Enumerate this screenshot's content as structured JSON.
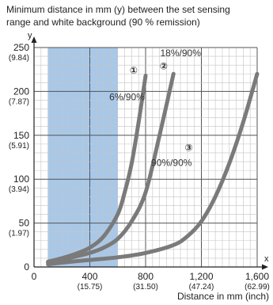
{
  "chart_data": {
    "type": "line",
    "title_lines": [
      "Minimum distance in mm (y) between the set sensing",
      "range and white background (90 % remission)"
    ],
    "xlabel": "Distance in mm (inch)",
    "x_axis_letter": "x",
    "y_axis_letter": "y",
    "xlim": [
      0,
      1600
    ],
    "ylim": [
      0,
      250
    ],
    "grid": true,
    "x_ticks": [
      {
        "value": 0,
        "label": "0",
        "sub": ""
      },
      {
        "value": 400,
        "label": "400",
        "sub": "(15.75)"
      },
      {
        "value": 800,
        "label": "800",
        "sub": "(31.50)"
      },
      {
        "value": 1200,
        "label": "1,200",
        "sub": "(47.24)"
      },
      {
        "value": 1600,
        "label": "1,600",
        "sub": "(62.99)"
      }
    ],
    "y_ticks": [
      {
        "value": 0,
        "label": "0",
        "sub": ""
      },
      {
        "value": 50,
        "label": "50",
        "sub": "(1.97)"
      },
      {
        "value": 100,
        "label": "100",
        "sub": "(3.94)"
      },
      {
        "value": 150,
        "label": "150",
        "sub": "(5.91)"
      },
      {
        "value": 200,
        "label": "200",
        "sub": "(7.87)"
      },
      {
        "value": 250,
        "label": "250",
        "sub": "(9.84)"
      }
    ],
    "highlight_band": {
      "x_start": 100,
      "x_end": 600,
      "color": "#a9c8e8"
    },
    "curve_color": "#7a7a7a",
    "series": [
      {
        "marker": "①",
        "name": "6%/90%",
        "x": [
          100,
          200,
          300,
          400,
          500,
          600,
          650,
          700,
          750,
          800
        ],
        "y": [
          6,
          10,
          15,
          22,
          35,
          60,
          85,
          118,
          165,
          218
        ]
      },
      {
        "marker": "②",
        "name": "18%/90%",
        "x": [
          100,
          200,
          300,
          400,
          500,
          600,
          700,
          800,
          900,
          1000
        ],
        "y": [
          5,
          8,
          12,
          16,
          22,
          32,
          52,
          85,
          150,
          220
        ]
      },
      {
        "marker": "③",
        "name": "90%/90%",
        "x": [
          100,
          200,
          400,
          600,
          800,
          1000,
          1100,
          1200,
          1300,
          1400,
          1500,
          1600
        ],
        "y": [
          3,
          5,
          8,
          11,
          16,
          25,
          35,
          52,
          80,
          118,
          165,
          220
        ]
      }
    ]
  }
}
